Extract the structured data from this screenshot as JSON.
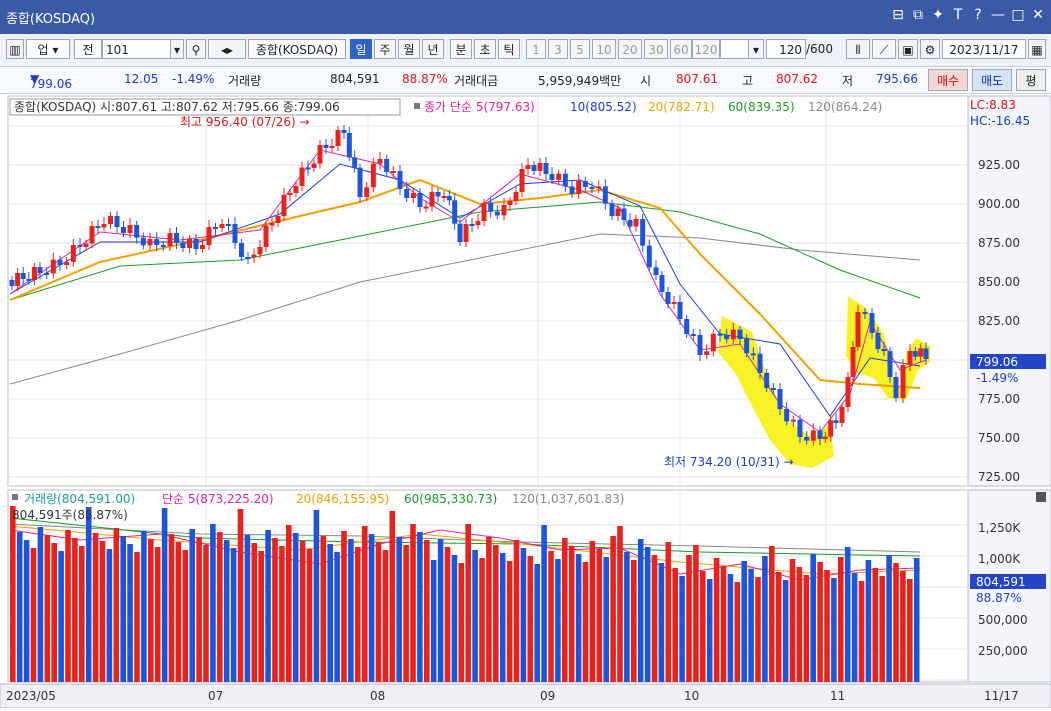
{
  "window": {
    "title": "종합(KOSDAQ)",
    "controls": [
      "⊟",
      "⧉",
      "✦",
      "T",
      "?",
      "—",
      "□",
      "✕"
    ]
  },
  "toolbar": {
    "market": "업",
    "type": "전",
    "code": "101",
    "name": "종합(KOSDAQ)",
    "periods": [
      "일",
      "주",
      "월",
      "년",
      "분",
      "초",
      "틱"
    ],
    "active_period": "일",
    "intervals": [
      "1",
      "3",
      "5",
      "10",
      "20",
      "30",
      "60",
      "120"
    ],
    "count": "120",
    "count_max": "/600",
    "date": "2023/11/17"
  },
  "quote": {
    "price": "799.06",
    "change": "12.05",
    "change_pct": "-1.49%",
    "volume_label": "거래량",
    "volume": "804,591",
    "volume_ratio": "88.87%",
    "amount_label": "거래대금",
    "amount": "5,959,949백만",
    "open_label": "시",
    "open": "807.61",
    "high_label": "고",
    "high": "807.62",
    "low_label": "저",
    "low": "795.66",
    "buy": "매수",
    "sell": "매도",
    "extra": "평"
  },
  "price_panel": {
    "legend_title": "종합(KOSDAQ) 시:807.61 고:807.62 저:795.66 종:799.06",
    "ma_label": "종가 단순",
    "ma5": "5(797.63)",
    "ma10": "10(805.52)",
    "ma20": "20(782.71)",
    "ma60": "60(839.35)",
    "ma120": "120(864.24)",
    "lc": "LC:8.83",
    "hc": "HC:-16.45",
    "high_note": "최고 956.40 (07/26) →",
    "low_note": "최저 734.20 (10/31) →",
    "axis": [
      "925.00",
      "900.00",
      "875.00",
      "850.00",
      "825.00",
      "800.00",
      "775.00",
      "750.00",
      "725.00"
    ],
    "last_price": "799.06",
    "last_pct": "-1.49%"
  },
  "volume_panel": {
    "legend_title": "거래량(804,591.00)",
    "ma5": "단순 5(873,225.20)",
    "ma20": "20(846,155.95)",
    "ma60": "60(985,330.73)",
    "ma120": "120(1,037,601.83)",
    "sub": "804,591주(88.87%)",
    "axis": [
      "1,250K",
      "1,000K",
      "750,000",
      "500,000",
      "250,000"
    ],
    "last_volume": "804,591",
    "last_pct": "88.87%"
  },
  "xaxis": {
    "labels": [
      "2023/05",
      "07",
      "08",
      "09",
      "10",
      "11"
    ],
    "right": "11/17"
  },
  "colors": {
    "up": "#e8231e",
    "down": "#1e55d8",
    "ma5": "#e020a8",
    "ma10": "#1e3cd2",
    "ma20": "#f0a000",
    "ma60": "#1a9a2a",
    "ma120": "#888888",
    "highlight": "#f6f000"
  }
}
